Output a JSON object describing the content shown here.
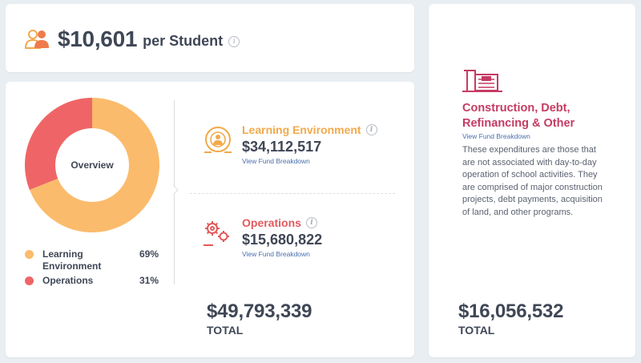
{
  "per_student": {
    "icon": "students-icon",
    "value": "$10,601",
    "suffix": "per Student",
    "info_icon": "info-icon"
  },
  "overview": {
    "donut_label": "Overview",
    "segments": [
      {
        "name": "Learning Environment",
        "percent": 69,
        "color": "#fbbb6c"
      },
      {
        "name": "Operations",
        "percent": 31,
        "color": "#ef6567"
      }
    ],
    "legend": [
      {
        "label": "Learning Environment",
        "pct": "69%",
        "color": "#fbbb6c"
      },
      {
        "label": "Operations",
        "pct": "31%",
        "color": "#ef6567"
      }
    ]
  },
  "funds": [
    {
      "icon": "learning-environment-icon",
      "title": "Learning Environment",
      "title_color": "#f2a94b",
      "value": "$34,112,517",
      "link": "View Fund Breakdown"
    },
    {
      "icon": "operations-gears-icon",
      "title": "Operations",
      "title_color": "#e25a5c",
      "value": "$15,680,822",
      "link": "View Fund Breakdown"
    }
  ],
  "main_total": {
    "value": "$49,793,339",
    "label": "TOTAL"
  },
  "construction": {
    "icon": "construction-building-icon",
    "title": "Construction, Debt, Refinancing & Other",
    "title_color": "#c53b63",
    "link": "View Fund Breakdown",
    "description": "These expenditures are those that are not associated with day-to-day operation of school activities. They are comprised of major construction projects, debt payments, acquisition of land, and other programs.",
    "total_value": "$16,056,532",
    "total_label": "TOTAL"
  }
}
